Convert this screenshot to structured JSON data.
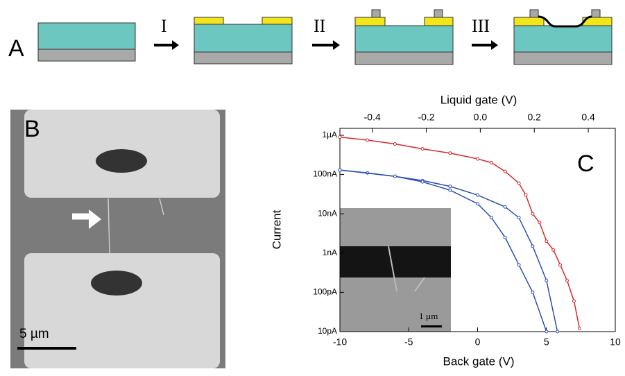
{
  "panel_a": {
    "label": "A",
    "steps": [
      "I",
      "II",
      "III"
    ]
  },
  "panel_b": {
    "label": "B",
    "scale_bar": "5 µm"
  },
  "chart_data": {
    "type": "line",
    "label": "C",
    "x_label": "Back gate (V)",
    "x2_label": "Liquid gate (V)",
    "y_label": "Current",
    "inset_scale_bar": "1 µm",
    "xlim": [
      -10,
      10
    ],
    "xticks": [
      -10,
      -5,
      0,
      5,
      10
    ],
    "x2lim": [
      -0.52,
      0.5
    ],
    "x2ticks": [
      -0.4,
      -0.2,
      {
        "value": 0,
        "label": "0.0"
      },
      0.2,
      0.4
    ],
    "y_scale": "log",
    "ylim": [
      1e-11,
      1.5e-06
    ],
    "yticks": [
      {
        "value": 1e-06,
        "label": "1µA"
      },
      {
        "value": 1e-07,
        "label": "100nA"
      },
      {
        "value": 1e-08,
        "label": "10nA"
      },
      {
        "value": 1e-09,
        "label": "1nA"
      },
      {
        "value": 1e-10,
        "label": "100pA"
      },
      {
        "value": 1e-11,
        "label": "10pA"
      }
    ],
    "series": [
      {
        "color": "#d42a2a",
        "x": [
          -10,
          -8,
          -6,
          -4,
          -2,
          0,
          1,
          2,
          3,
          3.5,
          4,
          4.5,
          5,
          5.5,
          6,
          6.5,
          7,
          7.4
        ],
        "values": [
          9e-07,
          7.5e-07,
          6e-07,
          4.5e-07,
          3.5e-07,
          2.5e-07,
          2e-07,
          1.2e-07,
          6e-08,
          3e-08,
          1e-08,
          6e-09,
          2e-09,
          1.2e-09,
          5e-10,
          2e-10,
          6e-11,
          1.2e-11
        ]
      },
      {
        "color": "#2a4fb0",
        "x": [
          -10,
          -8,
          -6,
          -4,
          -2,
          0,
          2,
          3,
          4,
          5,
          5.8
        ],
        "values": [
          1.3e-07,
          1.1e-07,
          9e-08,
          7e-08,
          5e-08,
          3e-08,
          1.5e-08,
          8e-09,
          1.5e-09,
          2e-10,
          1e-11
        ]
      },
      {
        "color": "#2a4fb0",
        "x": [
          -10,
          -6,
          -4,
          -2,
          0,
          1,
          2,
          3,
          4,
          5
        ],
        "values": [
          1.3e-07,
          9e-08,
          6.5e-08,
          4e-08,
          1.8e-08,
          8e-09,
          2.5e-09,
          5e-10,
          1e-10,
          1e-11
        ]
      }
    ]
  }
}
